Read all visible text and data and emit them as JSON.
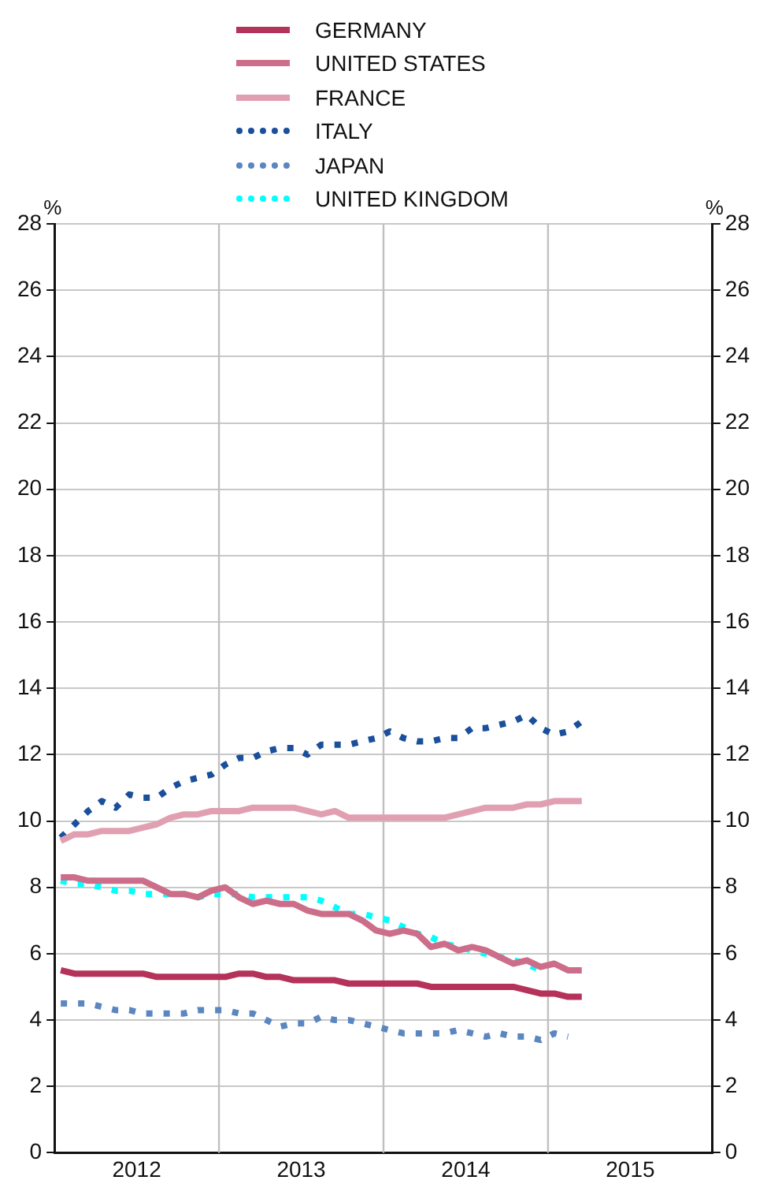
{
  "chart_data": {
    "type": "line",
    "ylabel": "%",
    "y2label": "%",
    "legend": "top",
    "grid": "y",
    "x": [
      "2012-01-15",
      "2012-02-15",
      "2012-03-15",
      "2012-04-15",
      "2012-05-15",
      "2012-06-15",
      "2012-07-15",
      "2012-08-15",
      "2012-09-15",
      "2012-10-15",
      "2012-11-15",
      "2012-12-15",
      "2013-01-15",
      "2013-02-15",
      "2013-03-15",
      "2013-04-15",
      "2013-05-15",
      "2013-06-15",
      "2013-07-15",
      "2013-08-15",
      "2013-09-15",
      "2013-10-15",
      "2013-11-15",
      "2013-12-15",
      "2014-01-15",
      "2014-02-15",
      "2014-03-15",
      "2014-04-15",
      "2014-05-15",
      "2014-06-15",
      "2014-07-15",
      "2014-08-15",
      "2014-09-15",
      "2014-10-15",
      "2014-11-15",
      "2014-12-15",
      "2015-01-15",
      "2015-02-15",
      "2015-03-15"
    ],
    "xlim": [
      "2012-01-01",
      "2016-01-01"
    ],
    "xticks": [
      {
        "value": "2012-07-01",
        "label": "2012"
      },
      {
        "value": "2013-07-01",
        "label": "2013"
      },
      {
        "value": "2014-07-01",
        "label": "2014"
      },
      {
        "value": "2015-07-01",
        "label": "2015"
      }
    ],
    "ylim": [
      0,
      28
    ],
    "yticks": [
      0,
      2,
      4,
      6,
      8,
      10,
      12,
      14,
      16,
      18,
      20,
      22,
      24,
      26,
      28
    ],
    "y2lim": [
      0,
      28
    ],
    "y2ticks": [
      0,
      2,
      4,
      6,
      8,
      10,
      12,
      14,
      16,
      18,
      20,
      22,
      24,
      26,
      28
    ],
    "ref_lines": [
      {
        "axis": "x",
        "value": "2013-01-01",
        "color": "#c0c0c0"
      },
      {
        "axis": "x",
        "value": "2014-01-01",
        "color": "#c0c0c0"
      },
      {
        "axis": "x",
        "value": "2015-01-01",
        "color": "#c0c0c0"
      }
    ],
    "series": [
      {
        "name": "GERMANY",
        "color": "#b5325a",
        "line_style": "solid",
        "values": [
          5.5,
          5.4,
          5.4,
          5.4,
          5.4,
          5.4,
          5.4,
          5.3,
          5.3,
          5.3,
          5.3,
          5.3,
          5.3,
          5.4,
          5.4,
          5.3,
          5.3,
          5.2,
          5.2,
          5.2,
          5.2,
          5.1,
          5.1,
          5.1,
          5.1,
          5.1,
          5.1,
          5.0,
          5.0,
          5.0,
          5.0,
          5.0,
          5.0,
          5.0,
          4.9,
          4.8,
          4.8,
          4.7,
          4.7
        ]
      },
      {
        "name": "UNITED STATES",
        "color": "#cc6e8a",
        "line_style": "solid",
        "values": [
          8.3,
          8.3,
          8.2,
          8.2,
          8.2,
          8.2,
          8.2,
          8.0,
          7.8,
          7.8,
          7.7,
          7.9,
          8.0,
          7.7,
          7.5,
          7.6,
          7.5,
          7.5,
          7.3,
          7.2,
          7.2,
          7.2,
          7.0,
          6.7,
          6.6,
          6.7,
          6.6,
          6.2,
          6.3,
          6.1,
          6.2,
          6.1,
          5.9,
          5.7,
          5.8,
          5.6,
          5.7,
          5.5,
          5.5
        ]
      },
      {
        "name": "FRANCE",
        "color": "#e0a0b2",
        "line_style": "solid",
        "values": [
          9.4,
          9.6,
          9.6,
          9.7,
          9.7,
          9.7,
          9.8,
          9.9,
          10.1,
          10.2,
          10.2,
          10.3,
          10.3,
          10.3,
          10.4,
          10.4,
          10.4,
          10.4,
          10.3,
          10.2,
          10.3,
          10.1,
          10.1,
          10.1,
          10.1,
          10.1,
          10.1,
          10.1,
          10.1,
          10.2,
          10.3,
          10.4,
          10.4,
          10.4,
          10.5,
          10.5,
          10.6,
          10.6,
          10.6
        ]
      },
      {
        "name": "ITALY",
        "color": "#1a4f9c",
        "line_style": "dotted",
        "values": [
          9.5,
          9.9,
          10.3,
          10.6,
          10.4,
          10.8,
          10.7,
          10.7,
          11.0,
          11.2,
          11.3,
          11.4,
          11.7,
          11.9,
          11.9,
          12.1,
          12.2,
          12.2,
          12.0,
          12.3,
          12.3,
          12.3,
          12.4,
          12.5,
          12.7,
          12.5,
          12.4,
          12.4,
          12.5,
          12.5,
          12.8,
          12.8,
          12.9,
          13.0,
          13.2,
          12.8,
          12.6,
          12.7,
          13.0
        ]
      },
      {
        "name": "JAPAN",
        "color": "#5b86c0",
        "line_style": "dotted",
        "values": [
          4.5,
          4.5,
          4.5,
          4.4,
          4.3,
          4.3,
          4.2,
          4.2,
          4.2,
          4.2,
          4.3,
          4.3,
          4.3,
          4.2,
          4.2,
          4.0,
          3.8,
          3.9,
          3.9,
          4.1,
          4.0,
          4.0,
          3.9,
          3.8,
          3.7,
          3.6,
          3.6,
          3.6,
          3.6,
          3.7,
          3.6,
          3.5,
          3.6,
          3.5,
          3.5,
          3.4,
          3.6,
          3.5,
          null
        ]
      },
      {
        "name": "UNITED KINGDOM",
        "color": "#00ffff",
        "line_style": "dotted",
        "values": [
          8.2,
          8.1,
          8.1,
          8.0,
          7.9,
          7.9,
          7.8,
          7.8,
          7.8,
          7.8,
          7.7,
          7.8,
          7.8,
          7.8,
          7.7,
          7.7,
          7.7,
          7.7,
          7.7,
          7.6,
          7.4,
          7.2,
          7.2,
          7.1,
          7.0,
          6.8,
          6.6,
          6.5,
          6.3,
          6.2,
          6.1,
          6.0,
          5.9,
          5.8,
          5.7,
          5.5,
          null,
          null,
          null
        ]
      }
    ]
  }
}
